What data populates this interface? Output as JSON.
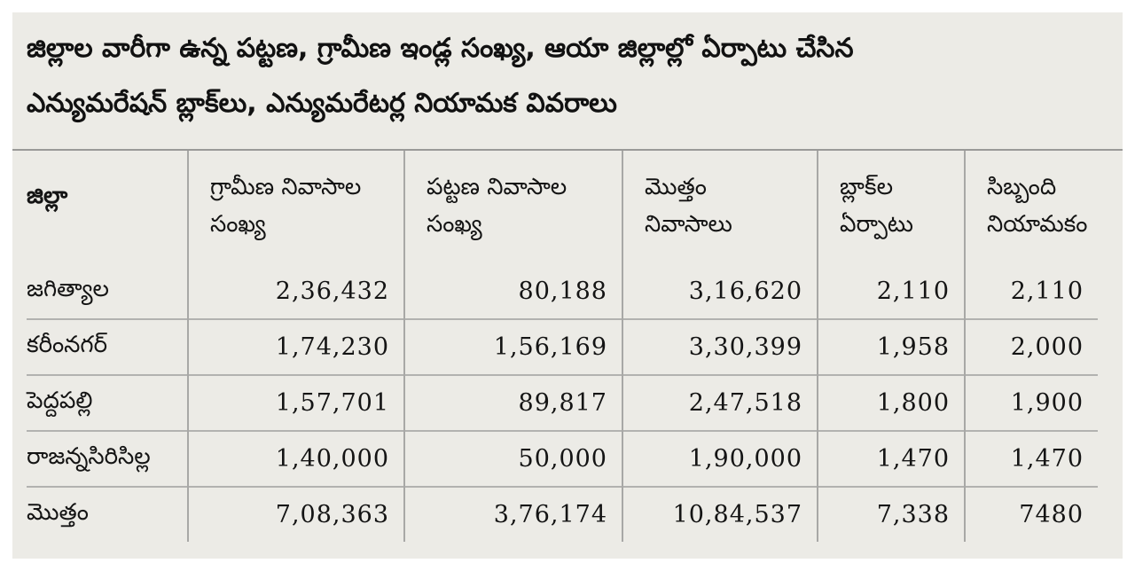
{
  "title": {
    "line1": "జిల్లాల వారీగా ఉన్న పట్టణ, గ్రామీణ ఇండ్ల సంఖ్య, ఆయా జిల్లాల్లో ఏర్పాటు చేసిన",
    "line2": "ఎన్యుమరేషన్ బ్లాక్‌లు, ఎన్యుమరేటర్ల నియామక వివరాలు"
  },
  "table": {
    "headers": [
      {
        "line1": "జిల్లా",
        "line2": ""
      },
      {
        "line1": "గ్రామీణ నివాసాల",
        "line2": "సంఖ్య"
      },
      {
        "line1": "పట్టణ నివాసాల",
        "line2": "సంఖ్య"
      },
      {
        "line1": "మొత్తం",
        "line2": "నివాసాలు"
      },
      {
        "line1": "బ్లాక్‌ల",
        "line2": "ఏర్పాటు"
      },
      {
        "line1": "సిబ్బంది",
        "line2": "నియామకం"
      }
    ],
    "rows": [
      [
        "జగిత్యాల",
        "2,36,432",
        "80,188",
        "3,16,620",
        "2,110",
        "2,110"
      ],
      [
        "కరీంనగర్",
        "1,74,230",
        "1,56,169",
        "3,30,399",
        "1,958",
        "2,000"
      ],
      [
        "పెద్దపల్లి",
        "1,57,701",
        "89,817",
        "2,47,518",
        "1,800",
        "1,900"
      ],
      [
        "రాజన్నసిరిసిల్ల",
        "1,40,000",
        "50,000",
        "1,90,000",
        "1,470",
        "1,470"
      ],
      [
        "మొత్తం",
        "7,08,363",
        "3,76,174",
        "10,84,537",
        "7,338",
        "7480"
      ]
    ]
  },
  "colors": {
    "background": "#ecebe6",
    "text": "#141414",
    "rule": "#a8a8a6"
  }
}
